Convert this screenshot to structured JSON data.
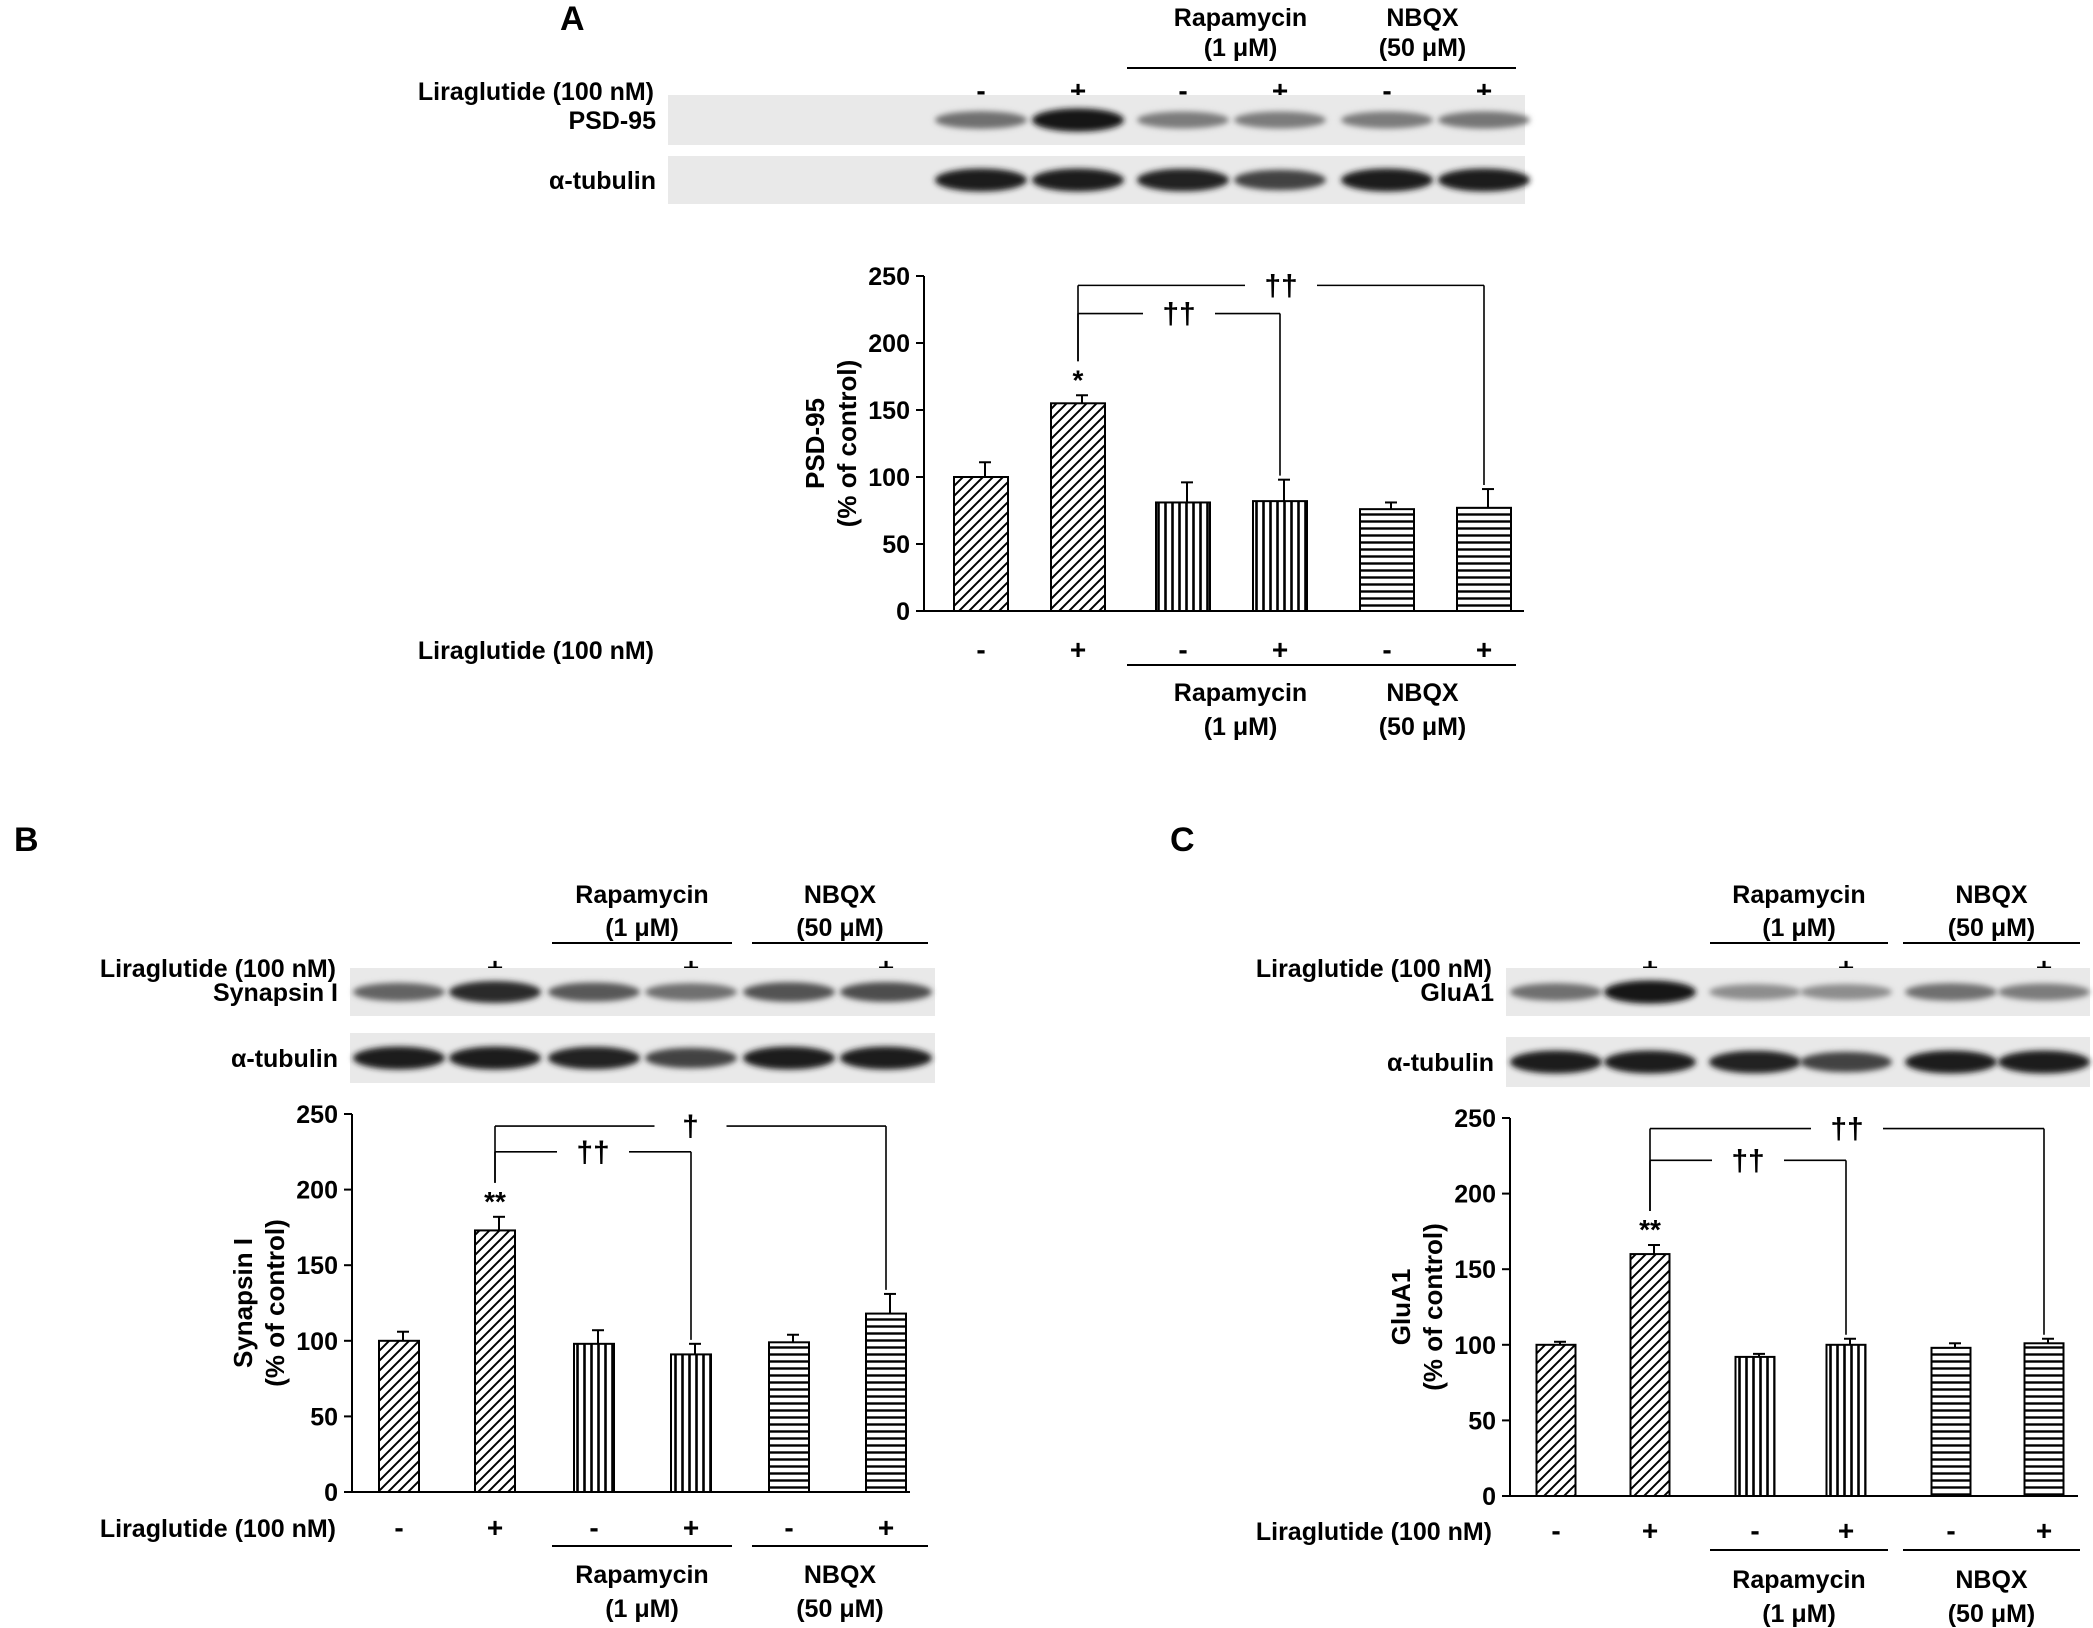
{
  "panels": [
    {
      "id": "A",
      "letter": "A",
      "treatment_label": "Liraglutide (100 nM)",
      "signs": [
        "-",
        "+",
        "-",
        "+",
        "-",
        "+"
      ],
      "groups": [
        {
          "line1": "Rapamycin",
          "line2": "(1 μM)"
        },
        {
          "line1": "NBQX",
          "line2": "(50 μM)"
        }
      ],
      "blots": [
        {
          "label": "PSD-95",
          "intensity": [
            0.55,
            0.95,
            0.5,
            0.5,
            0.5,
            0.52
          ]
        },
        {
          "label": "α-tubulin",
          "intensity": [
            0.92,
            0.92,
            0.9,
            0.75,
            0.92,
            0.92
          ]
        }
      ],
      "chart_data": {
        "type": "bar",
        "ylabel_line1": "PSD-95",
        "ylabel_line2": "(% of control)",
        "ylim": [
          0,
          250
        ],
        "yticks": [
          0,
          50,
          100,
          150,
          200,
          250
        ],
        "values": [
          100,
          155,
          81,
          82,
          76,
          77
        ],
        "errors": [
          11,
          6,
          15,
          16,
          5,
          14
        ],
        "patterns": [
          "diag",
          "diag",
          "vert",
          "vert",
          "horiz",
          "horiz"
        ],
        "bar_marks": [
          "",
          "*",
          "",
          "",
          "",
          ""
        ],
        "comparisons": [
          {
            "from": 1,
            "to": 3,
            "y": 222,
            "label": "††"
          },
          {
            "from": 1,
            "to": 5,
            "y": 243,
            "label": "††"
          }
        ]
      }
    },
    {
      "id": "B",
      "letter": "B",
      "treatment_label": "Liraglutide (100 nM)",
      "signs": [
        "-",
        "+",
        "-",
        "+",
        "-",
        "+"
      ],
      "groups": [
        {
          "line1": "Rapamycin",
          "line2": "(1 μM)"
        },
        {
          "line1": "NBQX",
          "line2": "(50 μM)"
        }
      ],
      "blots": [
        {
          "label": "Synapsin I",
          "intensity": [
            0.6,
            0.85,
            0.65,
            0.55,
            0.68,
            0.7
          ]
        },
        {
          "label": "α-tubulin",
          "intensity": [
            0.92,
            0.92,
            0.9,
            0.75,
            0.92,
            0.92
          ]
        }
      ],
      "chart_data": {
        "type": "bar",
        "ylabel_line1": "Synapsin I",
        "ylabel_line2": "(% of control)",
        "ylim": [
          0,
          250
        ],
        "yticks": [
          0,
          50,
          100,
          150,
          200,
          250
        ],
        "values": [
          100,
          173,
          98,
          91,
          99,
          118
        ],
        "errors": [
          6,
          9,
          9,
          7,
          5,
          13
        ],
        "patterns": [
          "diag",
          "diag",
          "vert",
          "vert",
          "horiz",
          "horiz"
        ],
        "bar_marks": [
          "",
          "**",
          "",
          "",
          "",
          ""
        ],
        "comparisons": [
          {
            "from": 1,
            "to": 3,
            "y": 225,
            "label": "††"
          },
          {
            "from": 1,
            "to": 5,
            "y": 242,
            "label": "†"
          }
        ]
      }
    },
    {
      "id": "C",
      "letter": "C",
      "treatment_label": "Liraglutide (100 nM)",
      "signs": [
        "-",
        "+",
        "-",
        "+",
        "-",
        "+"
      ],
      "groups": [
        {
          "line1": "Rapamycin",
          "line2": "(1 μM)"
        },
        {
          "line1": "NBQX",
          "line2": "(50 μM)"
        }
      ],
      "blots": [
        {
          "label": "GluA1",
          "intensity": [
            0.55,
            0.95,
            0.42,
            0.42,
            0.55,
            0.5
          ]
        },
        {
          "label": "α-tubulin",
          "intensity": [
            0.92,
            0.92,
            0.9,
            0.75,
            0.92,
            0.92
          ]
        }
      ],
      "chart_data": {
        "type": "bar",
        "ylabel_line1": "GluA1",
        "ylabel_line2": "(% of control)",
        "ylim": [
          0,
          250
        ],
        "yticks": [
          0,
          50,
          100,
          150,
          200,
          250
        ],
        "values": [
          100,
          160,
          92,
          100,
          98,
          101
        ],
        "errors": [
          2,
          6,
          2,
          4,
          3,
          3
        ],
        "patterns": [
          "diag",
          "diag",
          "vert",
          "vert",
          "horiz",
          "horiz"
        ],
        "bar_marks": [
          "",
          "**",
          "",
          "",
          "",
          ""
        ],
        "comparisons": [
          {
            "from": 1,
            "to": 3,
            "y": 222,
            "label": "††"
          },
          {
            "from": 1,
            "to": 5,
            "y": 243,
            "label": "††"
          }
        ]
      }
    }
  ]
}
